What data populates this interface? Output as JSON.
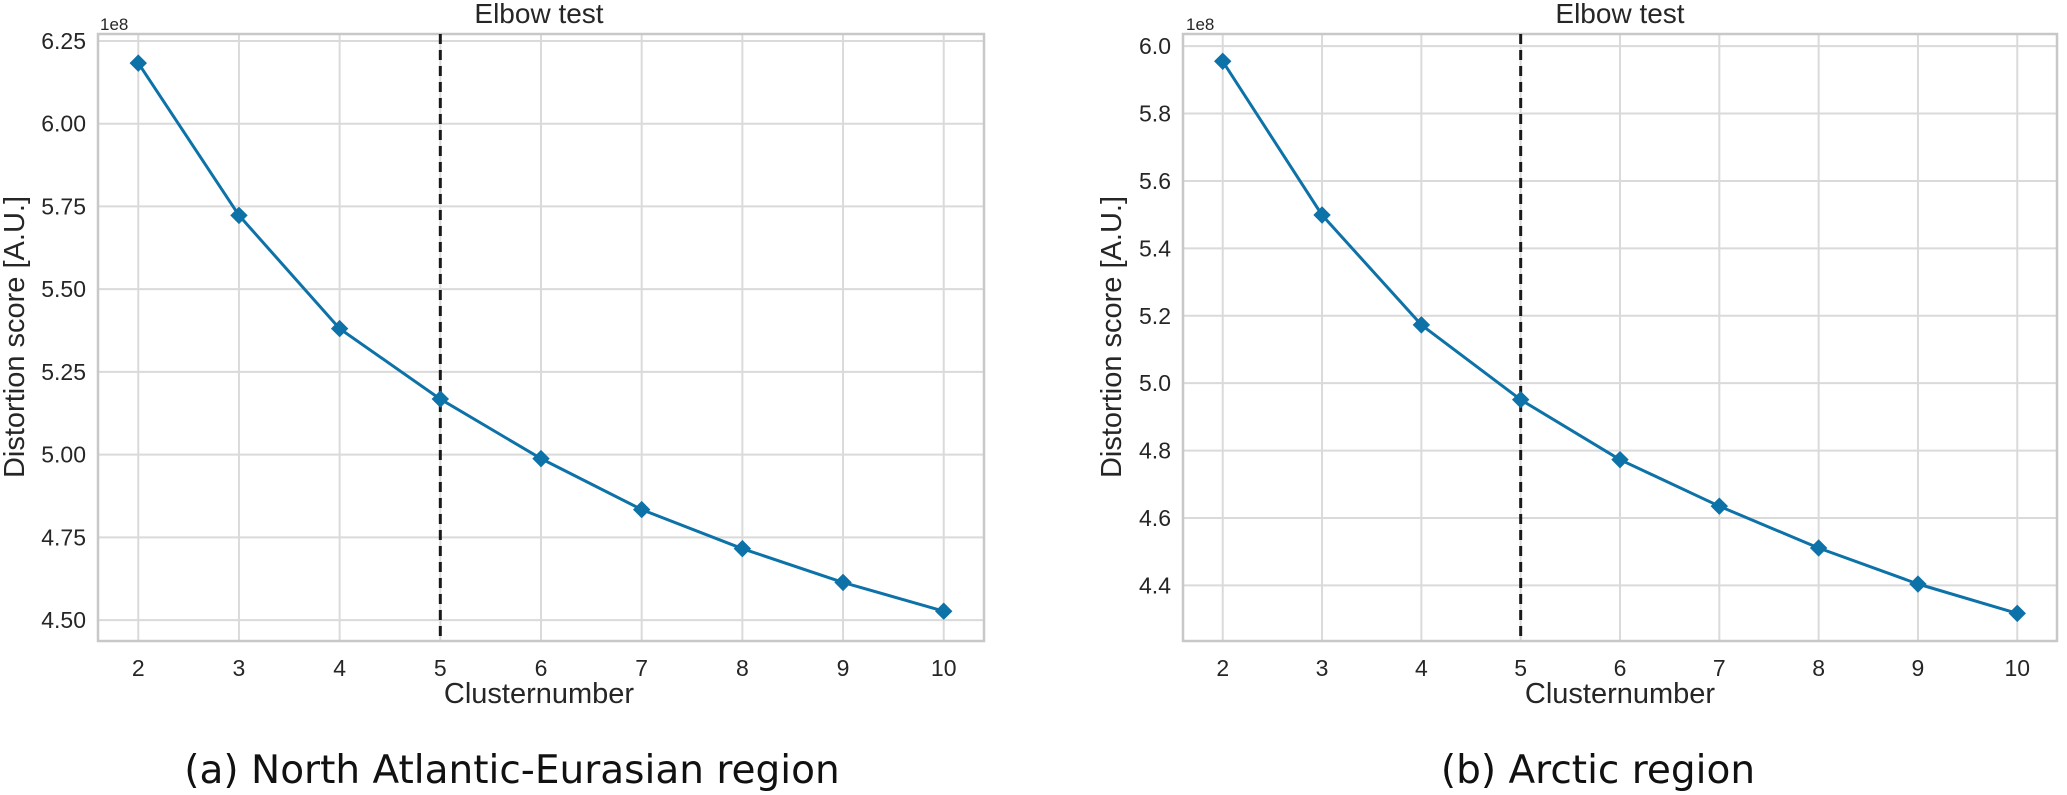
{
  "colors": {
    "series": "#0d72a8",
    "grid": "#dadada",
    "frame": "#c8c8c8",
    "threshold": "#1a1a1a",
    "text": "#262626"
  },
  "chart_data": [
    {
      "type": "line",
      "title": "Elbow test",
      "xlabel": "Clusternumber",
      "ylabel": "Distortion score [A.U.]",
      "offset_label": "1e8",
      "caption": "(a) North Atlantic-Eurasian region",
      "x": [
        2,
        3,
        4,
        5,
        6,
        7,
        8,
        9,
        10
      ],
      "series": [
        {
          "values": [
            6.183,
            5.723,
            5.381,
            5.168,
            4.988,
            4.834,
            4.716,
            4.614,
            4.527
          ],
          "marker": "diamond"
        }
      ],
      "elbow_x": 5,
      "xlim": [
        1.6,
        10.4
      ],
      "ylim": [
        4.437,
        6.271
      ],
      "x_ticks": [
        "2",
        "3",
        "4",
        "5",
        "6",
        "7",
        "8",
        "9",
        "10"
      ],
      "y_tick_values": [
        4.5,
        4.75,
        5.0,
        5.25,
        5.5,
        5.75,
        6.0,
        6.25
      ],
      "y_ticks": [
        "4.50",
        "4.75",
        "5.00",
        "5.25",
        "5.50",
        "5.75",
        "6.00",
        "6.25"
      ],
      "grid": true
    },
    {
      "type": "line",
      "title": "Elbow test",
      "xlabel": "Clusternumber",
      "ylabel": "Distortion score [A.U.]",
      "offset_label": "1e8",
      "caption": "(b) Arctic region",
      "x": [
        2,
        3,
        4,
        5,
        6,
        7,
        8,
        9,
        10
      ],
      "series": [
        {
          "values": [
            5.955,
            5.499,
            5.173,
            4.951,
            4.773,
            4.635,
            4.511,
            4.404,
            4.317
          ],
          "marker": "diamond"
        }
      ],
      "elbow_x": 5,
      "xlim": [
        1.6,
        10.4
      ],
      "ylim": [
        4.235,
        6.036
      ],
      "x_ticks": [
        "2",
        "3",
        "4",
        "5",
        "6",
        "7",
        "8",
        "9",
        "10"
      ],
      "y_tick_values": [
        4.4,
        4.6,
        4.8,
        5.0,
        5.2,
        5.4,
        5.6,
        5.8,
        6.0
      ],
      "y_ticks": [
        "4.4",
        "4.6",
        "4.8",
        "5.0",
        "5.2",
        "5.4",
        "5.6",
        "5.8",
        "6.0"
      ],
      "grid": true
    }
  ]
}
